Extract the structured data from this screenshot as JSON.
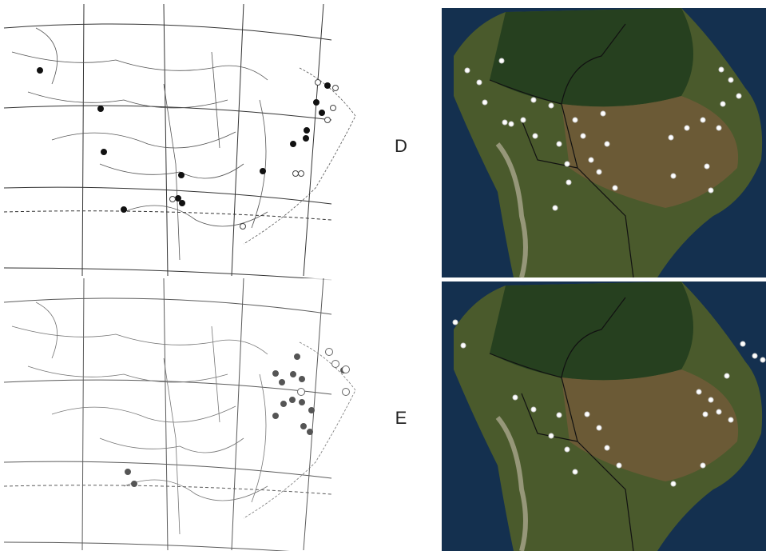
{
  "panels": [
    {
      "label": "D"
    },
    {
      "label": "E"
    }
  ]
}
